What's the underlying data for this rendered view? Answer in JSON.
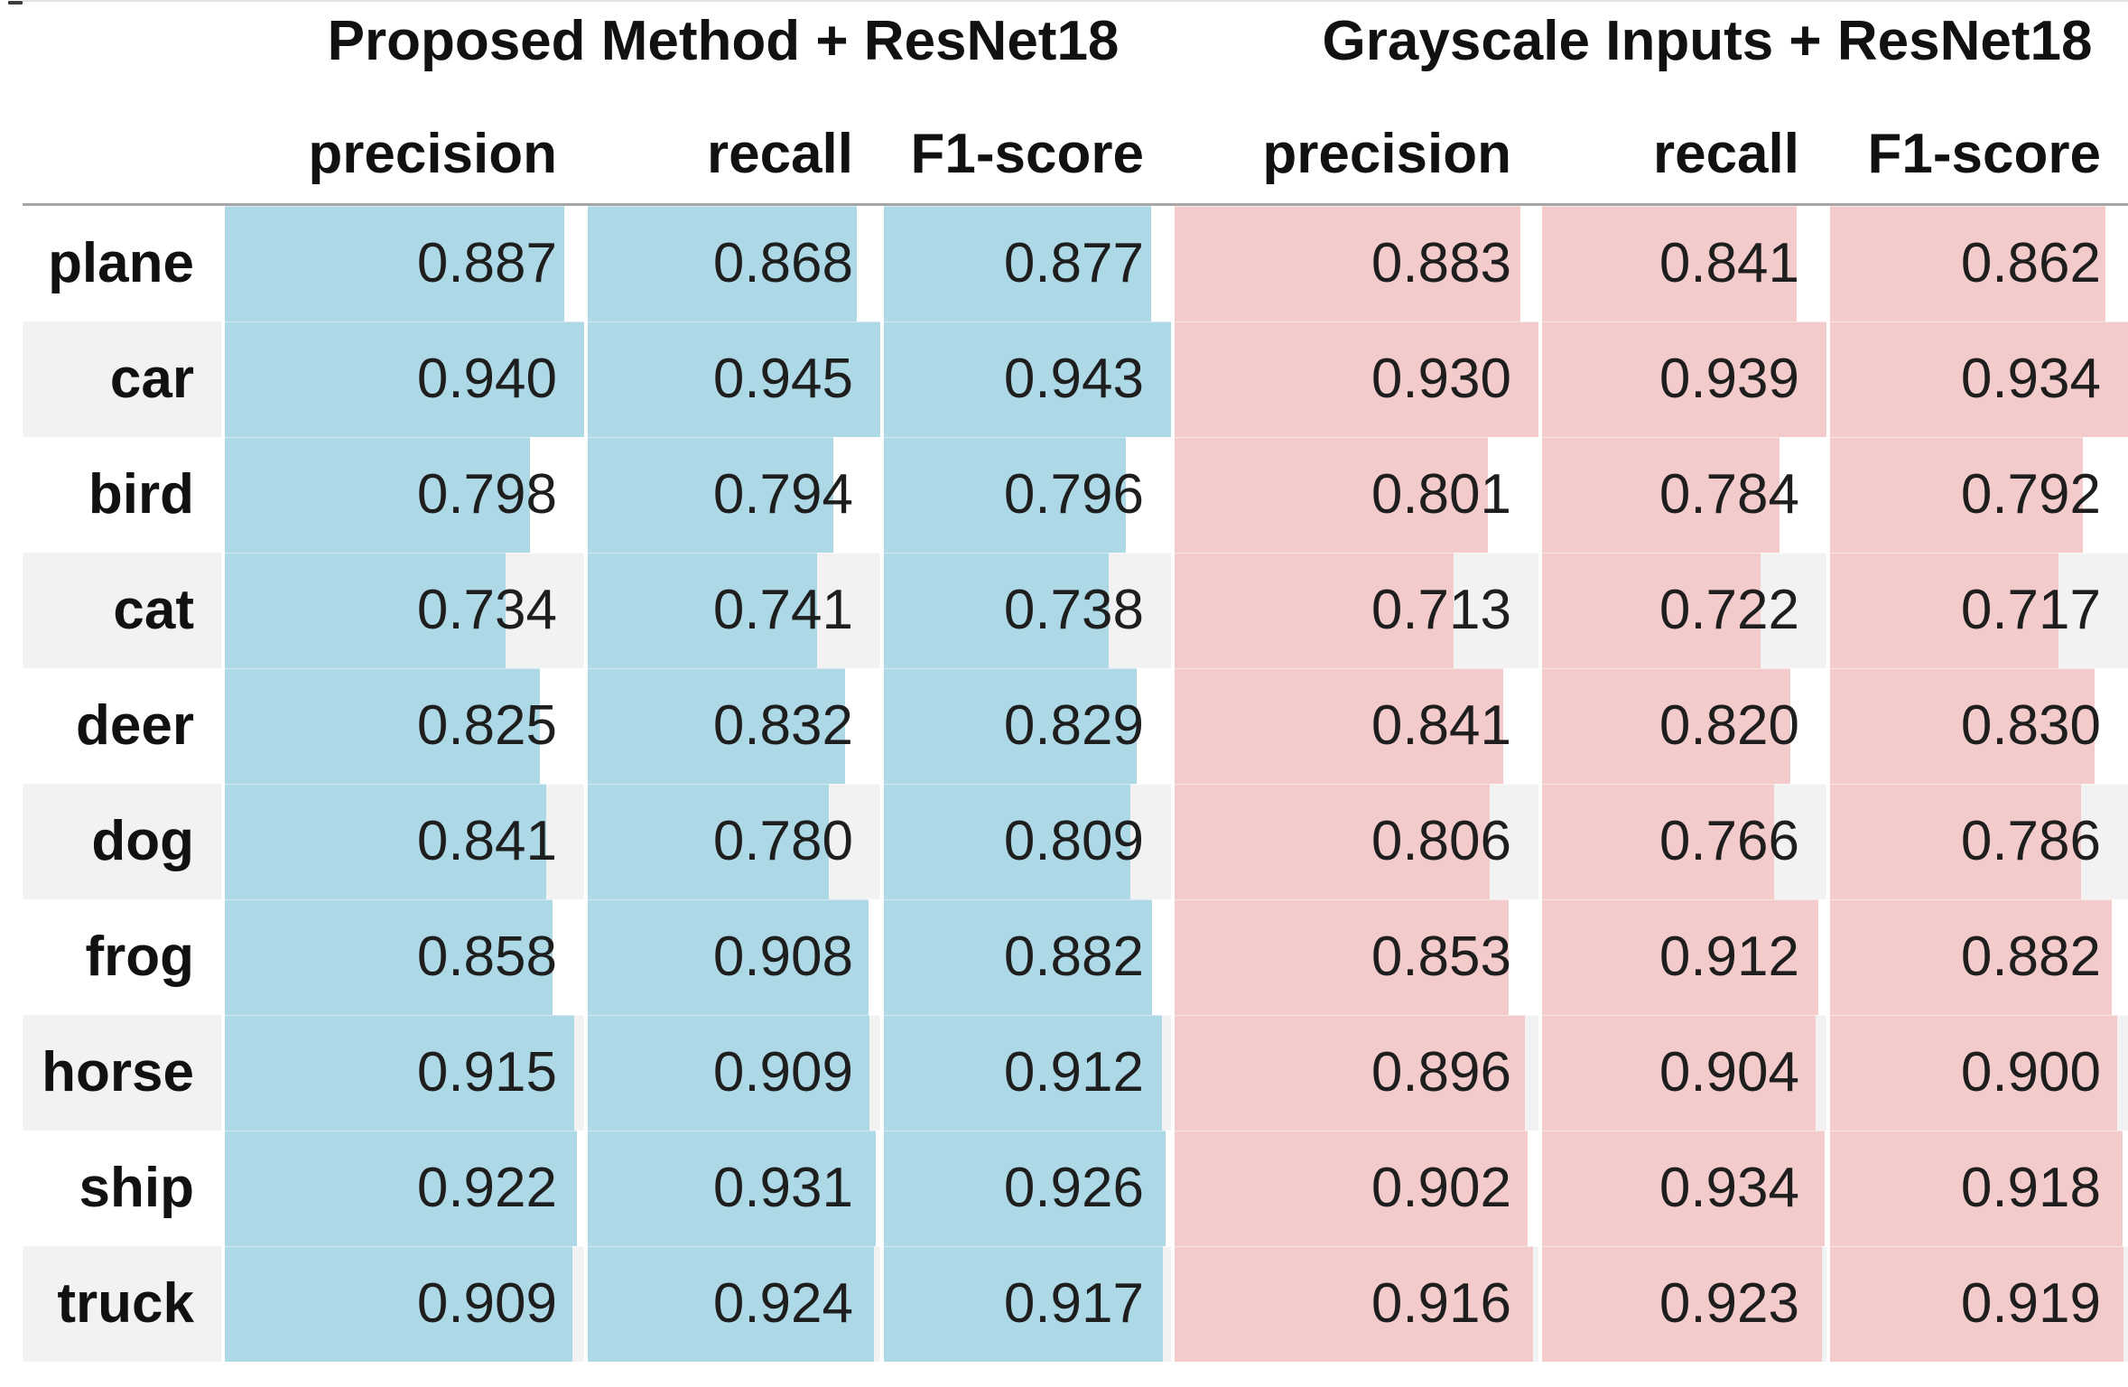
{
  "colors": {
    "bar_blue": "#ADD8E6",
    "bar_pink": "#F4CBCB",
    "row_stripe": "#F2F2F2",
    "header_rule": "#A6A6A6",
    "value_text": "#1E1E1E",
    "label_text": "#111111"
  },
  "table": {
    "group_headers": [
      {
        "title": "Proposed Method + ResNet18"
      },
      {
        "title": "Grayscale Inputs + ResNet18"
      }
    ],
    "metric_headers": [
      "precision",
      "recall",
      "F1-score"
    ],
    "bar_scaling": "bar width = value / column max, vmin 0",
    "rows": [
      {
        "label": "plane",
        "values": [
          "0.887",
          "0.868",
          "0.877",
          "0.883",
          "0.841",
          "0.862"
        ]
      },
      {
        "label": "car",
        "values": [
          "0.940",
          "0.945",
          "0.943",
          "0.930",
          "0.939",
          "0.934"
        ]
      },
      {
        "label": "bird",
        "values": [
          "0.798",
          "0.794",
          "0.796",
          "0.801",
          "0.784",
          "0.792"
        ]
      },
      {
        "label": "cat",
        "values": [
          "0.734",
          "0.741",
          "0.738",
          "0.713",
          "0.722",
          "0.717"
        ]
      },
      {
        "label": "deer",
        "values": [
          "0.825",
          "0.832",
          "0.829",
          "0.841",
          "0.820",
          "0.830"
        ]
      },
      {
        "label": "dog",
        "values": [
          "0.841",
          "0.780",
          "0.809",
          "0.806",
          "0.766",
          "0.786"
        ]
      },
      {
        "label": "frog",
        "values": [
          "0.858",
          "0.908",
          "0.882",
          "0.853",
          "0.912",
          "0.882"
        ]
      },
      {
        "label": "horse",
        "values": [
          "0.915",
          "0.909",
          "0.912",
          "0.896",
          "0.904",
          "0.900"
        ]
      },
      {
        "label": "ship",
        "values": [
          "0.922",
          "0.931",
          "0.926",
          "0.902",
          "0.934",
          "0.918"
        ]
      },
      {
        "label": "truck",
        "values": [
          "0.909",
          "0.924",
          "0.917",
          "0.916",
          "0.923",
          "0.919"
        ]
      }
    ]
  },
  "chart_data": {
    "type": "table",
    "title": "",
    "categories": [
      "plane",
      "car",
      "bird",
      "cat",
      "deer",
      "dog",
      "frog",
      "horse",
      "ship",
      "truck"
    ],
    "series": [
      {
        "name": "Proposed Method + ResNet18 precision",
        "values": [
          0.887,
          0.94,
          0.798,
          0.734,
          0.825,
          0.841,
          0.858,
          0.915,
          0.922,
          0.909
        ]
      },
      {
        "name": "Proposed Method + ResNet18 recall",
        "values": [
          0.868,
          0.945,
          0.794,
          0.741,
          0.832,
          0.78,
          0.908,
          0.909,
          0.931,
          0.924
        ]
      },
      {
        "name": "Proposed Method + ResNet18 F1-score",
        "values": [
          0.877,
          0.943,
          0.796,
          0.738,
          0.829,
          0.809,
          0.882,
          0.912,
          0.926,
          0.917
        ]
      },
      {
        "name": "Grayscale Inputs + ResNet18 precision",
        "values": [
          0.883,
          0.93,
          0.801,
          0.713,
          0.841,
          0.806,
          0.853,
          0.896,
          0.902,
          0.916
        ]
      },
      {
        "name": "Grayscale Inputs + ResNet18 recall",
        "values": [
          0.841,
          0.939,
          0.784,
          0.722,
          0.82,
          0.766,
          0.912,
          0.904,
          0.934,
          0.923
        ]
      },
      {
        "name": "Grayscale Inputs + ResNet18 F1-score",
        "values": [
          0.862,
          0.934,
          0.792,
          0.717,
          0.83,
          0.786,
          0.882,
          0.9,
          0.918,
          0.919
        ]
      }
    ],
    "layout": {
      "cell_bars": "horizontal in-cell data bars, left-aligned, scaled per column (value / column max)",
      "row_striping": "alternate white / light gray rows",
      "legend": "none",
      "grid": "header rule only"
    }
  }
}
